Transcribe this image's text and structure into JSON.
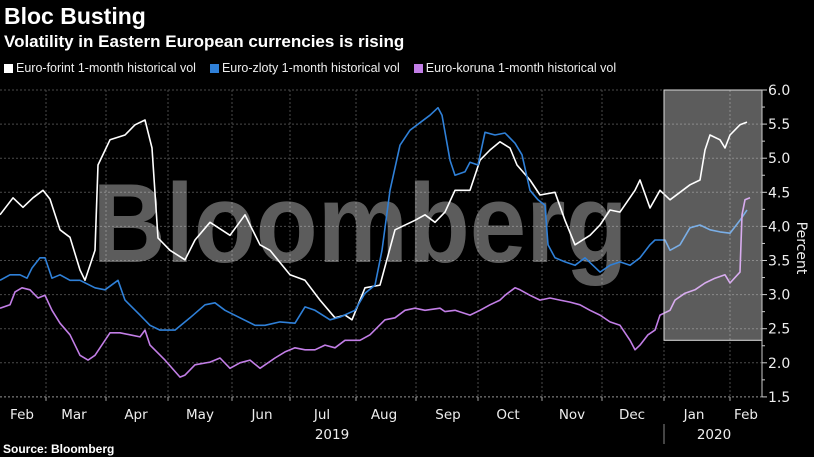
{
  "header": {
    "title": "Bloc Busting",
    "subtitle": "Volatility in Eastern European currencies is rising"
  },
  "footer": {
    "source": "Source: Bloomberg"
  },
  "watermark": "Bloomberg",
  "chart_data": {
    "type": "line",
    "title": "Bloc Busting",
    "subtitle": "Volatility in Eastern European currencies is rising",
    "x_unit": "days since 2019-01-28",
    "ylabel": "Percent",
    "ylim": [
      1.5,
      6.0
    ],
    "yticks": [
      "6.0",
      "5.5",
      "5.0",
      "4.5",
      "4.0",
      "3.5",
      "3.0",
      "2.5",
      "2.0",
      "1.5"
    ],
    "ytick_values": [
      6.0,
      5.5,
      5.0,
      4.5,
      4.0,
      3.5,
      3.0,
      2.5,
      2.0,
      1.5
    ],
    "month_boundaries": [
      23,
      53,
      84,
      116,
      145,
      178,
      208,
      239,
      271,
      301,
      332,
      365
    ],
    "month_labels": [
      {
        "label": "Feb",
        "day": 11
      },
      {
        "label": "Mar",
        "day": 37
      },
      {
        "label": "Apr",
        "day": 68
      },
      {
        "label": "May",
        "day": 100
      },
      {
        "label": "Jun",
        "day": 131
      },
      {
        "label": "Jul",
        "day": 161
      },
      {
        "label": "Aug",
        "day": 192
      },
      {
        "label": "Sep",
        "day": 224
      },
      {
        "label": "Oct",
        "day": 254
      },
      {
        "label": "Nov",
        "day": 286
      },
      {
        "label": "Dec",
        "day": 316
      },
      {
        "label": "Jan",
        "day": 347
      },
      {
        "label": "Feb",
        "day": 373
      }
    ],
    "year_labels": [
      {
        "label": "2019",
        "day": 166
      },
      {
        "label": "2020",
        "day": 357
      }
    ],
    "year_divider_day": 332,
    "grid": true,
    "legend_position": "top-left",
    "highlight": {
      "x_start_day": 332,
      "x_end_day": 381,
      "y_range": [
        2.33,
        6.0
      ]
    },
    "series": [
      {
        "name": "Euro-forint 1-month historical vol",
        "color": "#ffffff",
        "x": [
          0,
          6.5,
          11.5,
          16.5,
          21.5,
          25,
          30,
          35,
          40,
          42.5,
          47.5,
          49,
          55,
          62.5,
          67.5,
          72.5,
          76,
          79,
          85,
          92.5,
          97.5,
          105,
          115,
          122.5,
          130,
          135,
          145,
          152.5,
          160,
          167.5,
          172.5,
          176,
          182.5,
          190,
          197.5,
          207.5,
          212.5,
          217.5,
          222.5,
          227.5,
          235,
          240,
          245,
          250,
          255,
          258.5,
          265,
          270,
          277.5,
          282.5,
          287.5,
          295,
          300,
          305,
          310,
          317.5,
          320,
          325,
          330,
          335,
          340,
          345,
          350,
          352.5,
          355,
          360,
          362.5,
          365,
          370,
          373.5
        ],
        "values": [
          4.17,
          4.42,
          4.28,
          4.42,
          4.53,
          4.4,
          3.95,
          3.84,
          3.36,
          3.21,
          3.65,
          4.9,
          5.27,
          5.34,
          5.49,
          5.56,
          5.15,
          3.83,
          3.65,
          3.51,
          3.8,
          4.06,
          3.87,
          4.17,
          3.73,
          3.65,
          3.29,
          3.21,
          2.92,
          2.66,
          2.7,
          2.63,
          3.1,
          3.14,
          3.95,
          4.09,
          4.17,
          4.06,
          4.21,
          4.53,
          4.53,
          4.97,
          5.12,
          5.24,
          5.15,
          4.9,
          4.68,
          4.46,
          4.5,
          4.09,
          3.73,
          3.87,
          4.02,
          4.24,
          4.21,
          4.53,
          4.68,
          4.27,
          4.53,
          4.39,
          4.5,
          4.61,
          4.68,
          5.12,
          5.34,
          5.27,
          5.15,
          5.34,
          5.49,
          5.53
        ]
      },
      {
        "name": "Euro-zloty 1-month historical vol",
        "color": "#2f80d8",
        "x": [
          0,
          5,
          10,
          13.5,
          16,
          20,
          22.5,
          26,
          30,
          35,
          40,
          47.5,
          52.5,
          59,
          62.5,
          70,
          75,
          80,
          87.5,
          95,
          102.5,
          107.5,
          112.5,
          120,
          127.5,
          132.5,
          140,
          147.5,
          152.5,
          157.5,
          165,
          170,
          177.5,
          182.5,
          187.5,
          191,
          195,
          200,
          205,
          210,
          215,
          219,
          221,
          225,
          227.5,
          232.5,
          235,
          239,
          242.5,
          247.5,
          252.5,
          257.5,
          261,
          265,
          269,
          272.5,
          274,
          277.5,
          282.5,
          287.5,
          292.5,
          300,
          305,
          310,
          315,
          320,
          325,
          327.5,
          332.5,
          335,
          340,
          345,
          350,
          355,
          360,
          365,
          370,
          373.5
        ],
        "values": [
          3.21,
          3.29,
          3.29,
          3.24,
          3.39,
          3.54,
          3.54,
          3.24,
          3.29,
          3.21,
          3.21,
          3.1,
          3.07,
          3.21,
          2.92,
          2.7,
          2.55,
          2.48,
          2.48,
          2.66,
          2.85,
          2.88,
          2.77,
          2.66,
          2.55,
          2.55,
          2.6,
          2.58,
          2.82,
          2.77,
          2.63,
          2.67,
          2.77,
          3.02,
          3.14,
          3.65,
          4.53,
          5.19,
          5.41,
          5.52,
          5.63,
          5.74,
          5.63,
          4.97,
          4.75,
          4.8,
          4.94,
          4.9,
          5.38,
          5.34,
          5.37,
          5.22,
          5.05,
          4.53,
          4.39,
          4.31,
          3.73,
          3.54,
          3.48,
          3.43,
          3.54,
          3.33,
          3.43,
          3.48,
          3.43,
          3.54,
          3.73,
          3.8,
          3.8,
          3.65,
          3.73,
          3.98,
          4.02,
          3.95,
          3.92,
          3.9,
          4.09,
          4.24
        ]
      },
      {
        "name": "Euro-koruna 1-month historical vol",
        "color": "#c27ee6",
        "x": [
          0,
          5,
          7.5,
          11,
          15,
          19,
          22.5,
          26,
          30,
          35,
          40,
          44,
          47.5,
          50,
          55,
          60,
          65,
          70,
          72.5,
          75,
          82.5,
          90,
          92.5,
          97.5,
          105,
          110,
          115,
          120,
          125,
          130,
          137.5,
          142.5,
          147.5,
          152.5,
          157.5,
          162.5,
          167.5,
          172.5,
          180,
          185,
          192.5,
          197.5,
          202.5,
          207.5,
          212.5,
          220,
          222.5,
          227.5,
          235,
          240,
          245,
          250,
          252.5,
          257.5,
          260,
          265,
          270,
          275,
          280,
          285,
          290,
          295,
          300,
          305,
          310,
          315,
          317.5,
          320,
          324,
          327.5,
          330,
          335,
          337.5,
          342.5,
          347.5,
          352.5,
          357.5,
          362.5,
          365,
          370,
          371,
          372.5,
          375
        ],
        "values": [
          2.8,
          2.85,
          3.04,
          3.1,
          3.07,
          2.95,
          2.99,
          2.77,
          2.58,
          2.41,
          2.11,
          2.04,
          2.11,
          2.22,
          2.44,
          2.44,
          2.41,
          2.38,
          2.48,
          2.26,
          2.04,
          1.79,
          1.82,
          1.97,
          2.01,
          2.07,
          1.92,
          2.0,
          2.04,
          1.92,
          2.07,
          2.16,
          2.22,
          2.19,
          2.19,
          2.26,
          2.22,
          2.33,
          2.33,
          2.41,
          2.63,
          2.66,
          2.77,
          2.8,
          2.77,
          2.8,
          2.75,
          2.77,
          2.7,
          2.77,
          2.85,
          2.92,
          2.99,
          3.1,
          3.07,
          2.99,
          2.92,
          2.95,
          2.92,
          2.89,
          2.85,
          2.77,
          2.7,
          2.6,
          2.55,
          2.33,
          2.19,
          2.26,
          2.41,
          2.48,
          2.7,
          2.77,
          2.92,
          3.02,
          3.07,
          3.17,
          3.24,
          3.29,
          3.17,
          3.33,
          4.17,
          4.39,
          4.42
        ]
      }
    ]
  }
}
